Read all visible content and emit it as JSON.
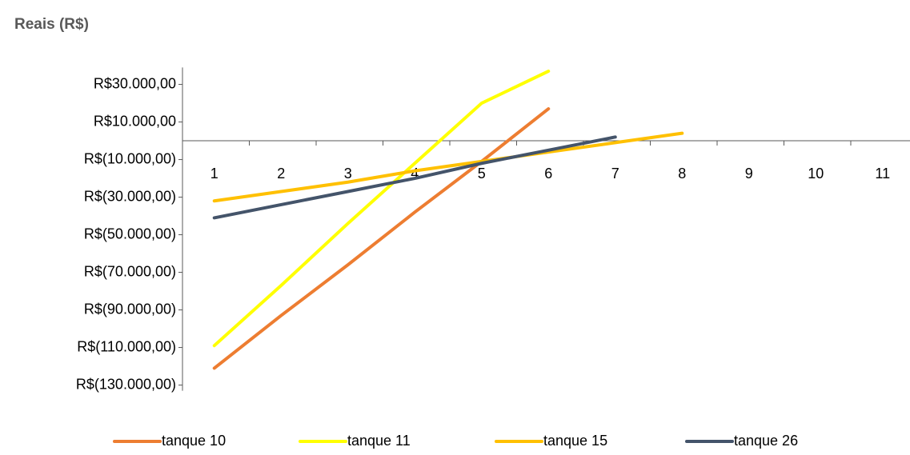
{
  "chart_data": {
    "type": "line",
    "title": "Reais (R$)",
    "categories": [
      "1",
      "2",
      "3",
      "4",
      "5",
      "6",
      "7",
      "8",
      "9",
      "10",
      "11"
    ],
    "series": [
      {
        "name": "tanque 10",
        "color": "#ED7D31",
        "values": [
          -121000,
          -93000,
          -66000,
          -38000,
          -11000,
          17000,
          null,
          null,
          null,
          null,
          null
        ]
      },
      {
        "name": "tanque 11",
        "color": "#FFFF00",
        "values": [
          -109000,
          -77000,
          -44000,
          -12000,
          20000,
          37000,
          null,
          null,
          null,
          null,
          null
        ]
      },
      {
        "name": "tanque 15",
        "color": "#FFC000",
        "values": [
          -32000,
          -27000,
          -22000,
          -16000,
          -11000,
          -6000,
          -1000,
          4000,
          null,
          null,
          null
        ]
      },
      {
        "name": "tanque 26",
        "color": "#44546A",
        "values": [
          -41000,
          -34000,
          -27000,
          -20000,
          -12000,
          -5000,
          2000,
          null,
          null,
          null,
          null
        ]
      }
    ],
    "ylim": [
      -133000,
      39000
    ],
    "yticks": [
      {
        "value": 30000,
        "label": "R$30.000,00"
      },
      {
        "value": 10000,
        "label": "R$10.000,00"
      },
      {
        "value": -10000,
        "label": "R$(10.000,00)"
      },
      {
        "value": -30000,
        "label": "R$(30.000,00)"
      },
      {
        "value": -50000,
        "label": "R$(50.000,00)"
      },
      {
        "value": -70000,
        "label": "R$(70.000,00)"
      },
      {
        "value": -90000,
        "label": "R$(90.000,00)"
      },
      {
        "value": -110000,
        "label": "R$(110.000,00)"
      },
      {
        "value": -130000,
        "label": "R$(130.000,00)"
      }
    ],
    "legend": "bottom"
  }
}
